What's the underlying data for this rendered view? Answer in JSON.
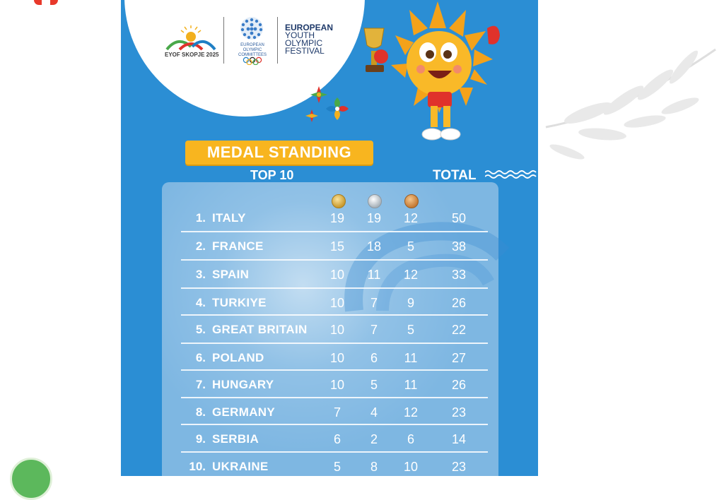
{
  "poster": {
    "eyof_logo_caption": "EYOF SKOPJE 2025",
    "eoc_caption": "EUROPEAN OLYMPIC COMMITTEES",
    "festival_lines": [
      "EUROPEAN",
      "YOUTH",
      "OLYMPIC",
      "FESTIVAL"
    ],
    "title": "MEDAL STANDING",
    "subtitle": "TOP 10",
    "total_header": "TOTAL",
    "colors": {
      "background": "#2b8ed4",
      "banner": "#f8b51f",
      "panel": "#79b4e1"
    },
    "medal_icons": [
      "gold-medal-icon",
      "silver-medal-icon",
      "bronze-medal-icon"
    ]
  },
  "standings": [
    {
      "rank": "1.",
      "country": "ITALY",
      "gold": "19",
      "silver": "19",
      "bronze": "12",
      "total": "50"
    },
    {
      "rank": "2.",
      "country": "FRANCE",
      "gold": "15",
      "silver": "18",
      "bronze": "5",
      "total": "38"
    },
    {
      "rank": "3.",
      "country": "SPAIN",
      "gold": "10",
      "silver": "11",
      "bronze": "12",
      "total": "33"
    },
    {
      "rank": "4.",
      "country": "TURKIYE",
      "gold": "10",
      "silver": "7",
      "bronze": "9",
      "total": "26"
    },
    {
      "rank": "5.",
      "country": "GREAT BRITAIN",
      "gold": "10",
      "silver": "7",
      "bronze": "5",
      "total": "22"
    },
    {
      "rank": "6.",
      "country": "POLAND",
      "gold": "10",
      "silver": "6",
      "bronze": "11",
      "total": "27"
    },
    {
      "rank": "7.",
      "country": "HUNGARY",
      "gold": "10",
      "silver": "5",
      "bronze": "11",
      "total": "26"
    },
    {
      "rank": "8.",
      "country": "GERMANY",
      "gold": "7",
      "silver": "4",
      "bronze": "12",
      "total": "23"
    },
    {
      "rank": "9.",
      "country": "SERBIA",
      "gold": "6",
      "silver": "2",
      "bronze": "6",
      "total": "14"
    },
    {
      "rank": "10.",
      "country": "UKRAINE",
      "gold": "5",
      "silver": "8",
      "bronze": "10",
      "total": "23"
    }
  ]
}
